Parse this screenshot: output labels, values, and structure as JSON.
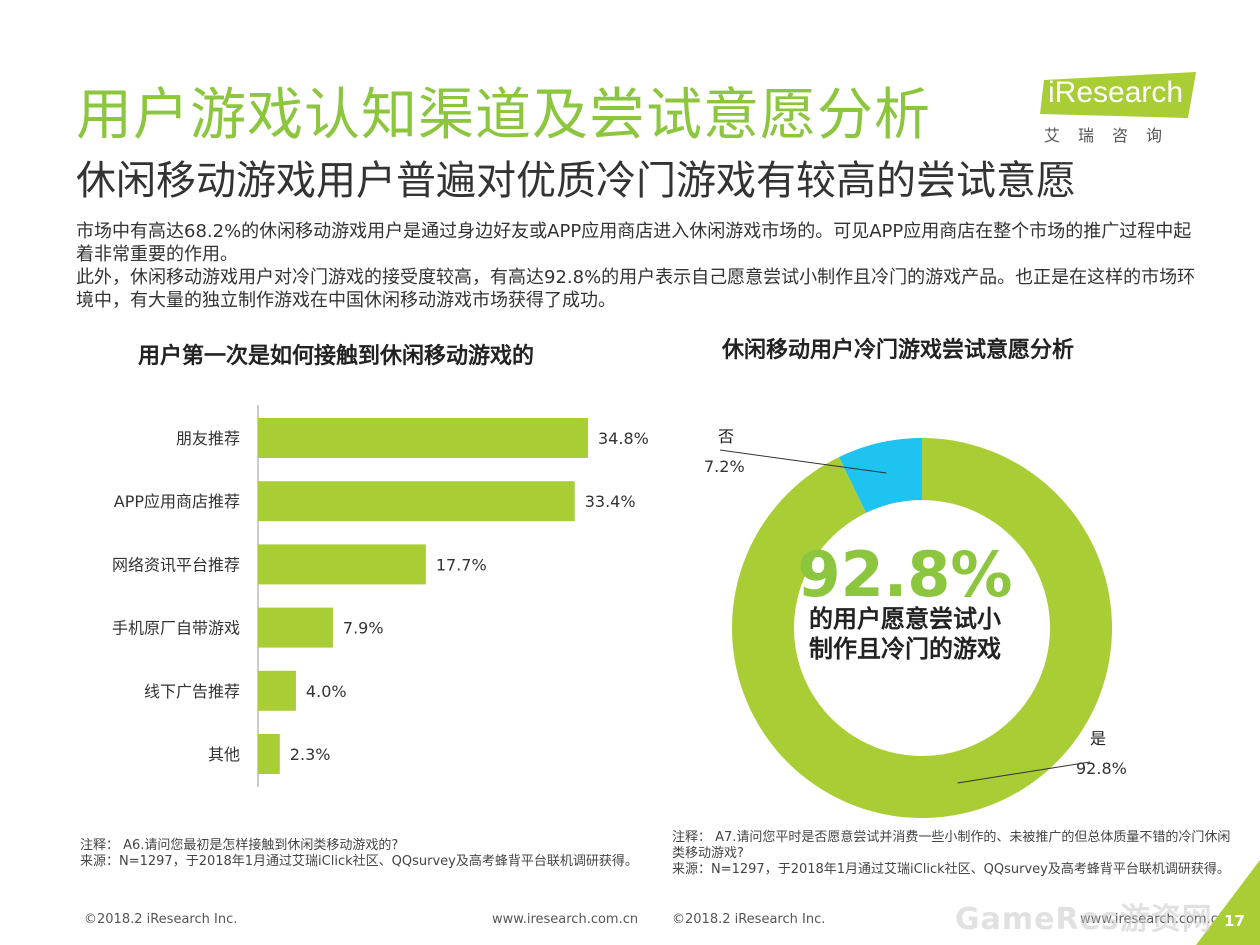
{
  "header": {
    "title": "用户游戏认知渠道及尝试意愿分析",
    "subtitle": "休闲移动游戏用户普遍对优质冷门游戏有较高的尝试意愿"
  },
  "logo": {
    "brand": "iResearch",
    "sub": "艾瑞咨询",
    "color": "#8cc63f"
  },
  "intro": {
    "p1": "市场中有高达68.2%的休闲移动游戏用户是通过身边好友或APP应用商店进入休闲游戏市场的。可见APP应用商店在整个市场的推广过程中起着非常重要的作用。",
    "p2": "此外，休闲移动游戏用户对冷门游戏的接受度较高，有高达92.8%的用户表示自己愿意尝试小制作且冷门的游戏产品。也正是在这样的市场环境中，有大量的独立制作游戏在中国休闲移动游戏市场获得了成功。"
  },
  "chart_data": [
    {
      "type": "bar",
      "orientation": "horizontal",
      "title": "用户第一次是如何接触到休闲移动游戏的",
      "categories": [
        "朋友推荐",
        "APP应用商店推荐",
        "网络资讯平台推荐",
        "手机原厂自带游戏",
        "线下广告推荐",
        "其他"
      ],
      "values": [
        34.8,
        33.4,
        17.7,
        7.9,
        4.0,
        2.3
      ],
      "labels": [
        "34.8%",
        "33.4%",
        "17.7%",
        "7.9%",
        "4.0%",
        "2.3%"
      ],
      "xlim": [
        0,
        40
      ],
      "color": "#a9cd35"
    },
    {
      "type": "pie",
      "style": "donut",
      "title": "休闲移动用户冷门游戏尝试意愿分析",
      "categories": [
        "否",
        "是"
      ],
      "values": [
        7.2,
        92.8
      ],
      "labels": [
        "7.2%",
        "92.8%"
      ],
      "colors": [
        "#1fc3ef",
        "#a9cd35"
      ],
      "center_value": "92.8%",
      "center_text": "的用户愿意尝试小制作且冷门的游戏"
    }
  ],
  "notes": {
    "left": {
      "line1": "注释： A6.请问您最初是怎样接触到休闲类移动游戏的?",
      "line2": "来源：N=1297，于2018年1月通过艾瑞iClick社区、QQsurvey及高考蜂背平台联机调研获得。"
    },
    "right": {
      "line1": "注释： A7.请问您平时是否愿意尝试并消费一些小制作的、未被推广的但总体质量不错的冷门休闲类移动游戏?",
      "line2": "来源：N=1297，于2018年1月通过艾瑞iClick社区、QQsurvey及高考蜂背平台联机调研获得。"
    }
  },
  "footer": {
    "copyright": "©2018.2 iResearch Inc.",
    "url": "www.iresearch.com.cn",
    "watermark": "GameRes游资网",
    "page": "17"
  }
}
